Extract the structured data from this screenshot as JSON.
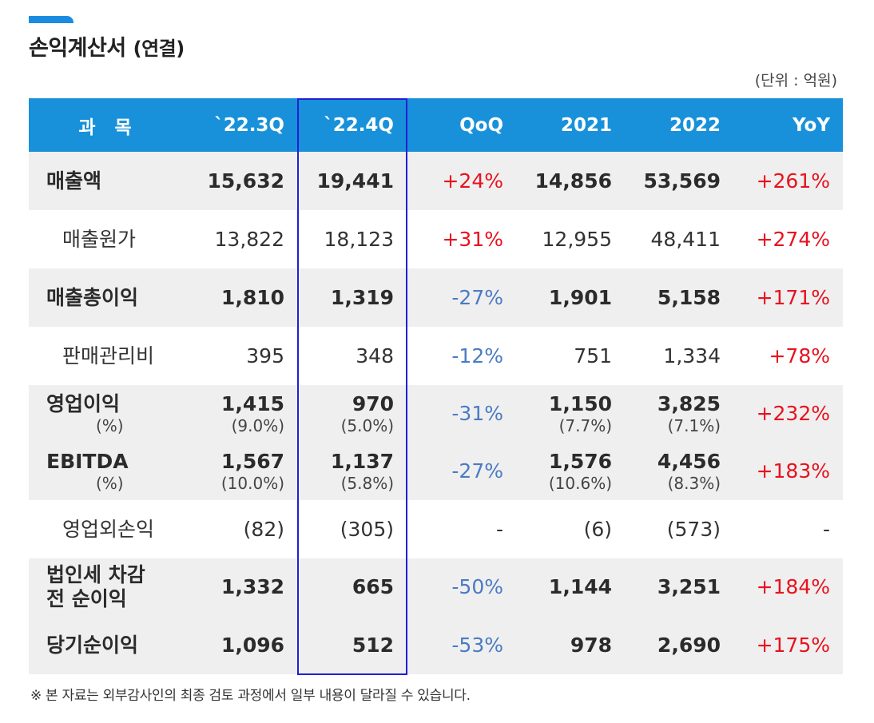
{
  "title": {
    "main": "손익계산서",
    "suffix": "(연결)"
  },
  "unit": "(단위 : 억원)",
  "colors": {
    "header_bg": "#1891da",
    "row_shade": "#efefef",
    "positive": "#e8121e",
    "negative": "#4a7bc4",
    "highlight_border": "#1f1fd6",
    "accent": "#1a8ce0"
  },
  "headers": [
    "과 목",
    "`22.3Q",
    "`22.4Q",
    "QoQ",
    "2021",
    "2022",
    "YoY"
  ],
  "rows": [
    {
      "label": "매출액",
      "q3": "15,632",
      "q4": "19,441",
      "qoq": "+24%",
      "y2021": "14,856",
      "y2022": "53,569",
      "yoy": "+261%"
    },
    {
      "label": "매출원가",
      "q3": "13,822",
      "q4": "18,123",
      "qoq": "+31%",
      "y2021": "12,955",
      "y2022": "48,411",
      "yoy": "+274%"
    },
    {
      "label": "매출총이익",
      "q3": "1,810",
      "q4": "1,319",
      "qoq": "-27%",
      "y2021": "1,901",
      "y2022": "5,158",
      "yoy": "+171%"
    },
    {
      "label": "판매관리비",
      "q3": "395",
      "q4": "348",
      "qoq": "-12%",
      "y2021": "751",
      "y2022": "1,334",
      "yoy": "+78%"
    },
    {
      "label": "영업이익",
      "label_sub": "(%)",
      "q3": "1,415",
      "q3_sub": "(9.0%)",
      "q4": "970",
      "q4_sub": "(5.0%)",
      "qoq": "-31%",
      "y2021": "1,150",
      "y2021_sub": "(7.7%)",
      "y2022": "3,825",
      "y2022_sub": "(7.1%)",
      "yoy": "+232%"
    },
    {
      "label": "EBITDA",
      "label_sub": "(%)",
      "q3": "1,567",
      "q3_sub": "(10.0%)",
      "q4": "1,137",
      "q4_sub": "(5.8%)",
      "qoq": "-27%",
      "y2021": "1,576",
      "y2021_sub": "(10.6%)",
      "y2022": "4,456",
      "y2022_sub": "(8.3%)",
      "yoy": "+183%"
    },
    {
      "label": "영업외손익",
      "q3": "(82)",
      "q4": "(305)",
      "qoq": "-",
      "y2021": "(6)",
      "y2022": "(573)",
      "yoy": "-"
    },
    {
      "label": "법인세 차감",
      "label2": "전 순이익",
      "q3": "1,332",
      "q4": "665",
      "qoq": "-50%",
      "y2021": "1,144",
      "y2022": "3,251",
      "yoy": "+184%"
    },
    {
      "label": "당기순이익",
      "q3": "1,096",
      "q4": "512",
      "qoq": "-53%",
      "y2021": "978",
      "y2022": "2,690",
      "yoy": "+175%"
    }
  ],
  "footnote": "※ 본 자료는 외부감사인의 최종 검토 과정에서 일부 내용이 달라질 수 있습니다."
}
